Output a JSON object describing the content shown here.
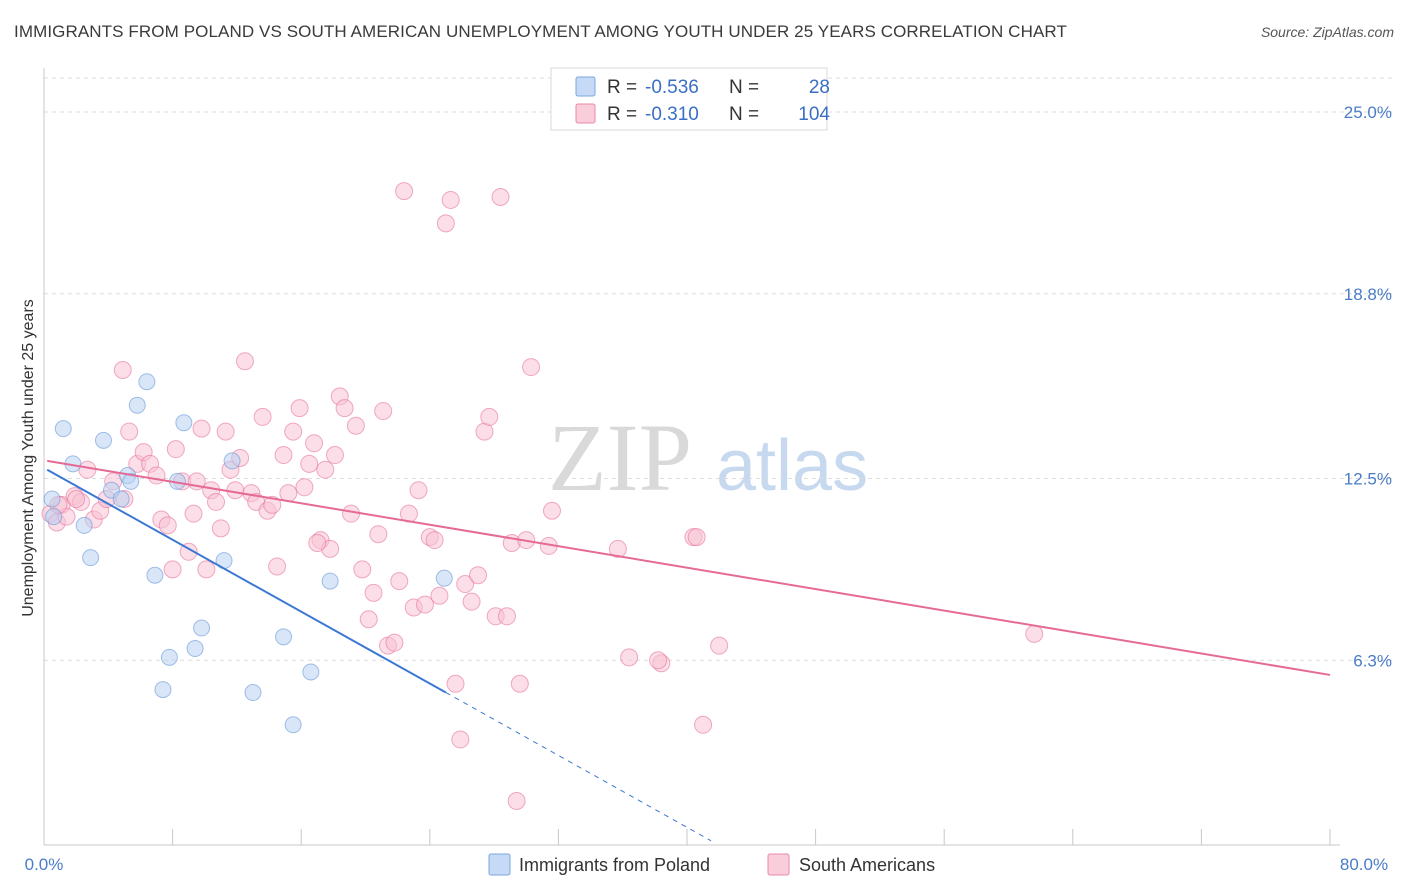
{
  "header": {
    "title": "IMMIGRANTS FROM POLAND VS SOUTH AMERICAN UNEMPLOYMENT AMONG YOUTH UNDER 25 YEARS CORRELATION CHART",
    "source": "Source: ZipAtlas.com"
  },
  "legend": {
    "r_label": "R =",
    "n_label": "N =",
    "rows": [
      {
        "r": "-0.536",
        "n": "28",
        "color": "#a8c8f0"
      },
      {
        "r": "-0.310",
        "n": "104",
        "color": "#f5b8cb"
      }
    ]
  },
  "watermark": {
    "zip": "ZIP",
    "atlas": "atlas"
  },
  "chart_data": {
    "type": "scatter",
    "title": "IMMIGRANTS FROM POLAND VS SOUTH AMERICAN UNEMPLOYMENT AMONG YOUTH UNDER 25 YEARS CORRELATION CHART",
    "xlabel": "",
    "ylabel": "Unemployment Among Youth under 25 years",
    "xlim": [
      0,
      80
    ],
    "ylim": [
      0,
      26.5
    ],
    "x_tick_labels": [
      "0.0%",
      "80.0%"
    ],
    "y_ticks": [
      6.3,
      12.5,
      18.8,
      25.0
    ],
    "y_tick_labels": [
      "6.3%",
      "12.5%",
      "18.8%",
      "25.0%"
    ],
    "grid": "horizontal dashed",
    "legend_position": "top-center",
    "series": [
      {
        "name": "Immigrants from Poland",
        "color": "#5b8fd6",
        "fill": "#b8d1f2",
        "regression": {
          "x0": 0.2,
          "y0": 12.8,
          "x1": 25.0,
          "y1": 5.2,
          "dashed_to_x": 41.5
        },
        "points": [
          [
            0.5,
            11.8
          ],
          [
            0.6,
            11.2
          ],
          [
            1.2,
            14.2
          ],
          [
            1.8,
            13.0
          ],
          [
            2.5,
            10.9
          ],
          [
            2.9,
            9.8
          ],
          [
            3.7,
            13.8
          ],
          [
            4.2,
            12.1
          ],
          [
            4.8,
            11.8
          ],
          [
            5.2,
            12.6
          ],
          [
            5.4,
            12.4
          ],
          [
            5.8,
            15.0
          ],
          [
            6.4,
            15.8
          ],
          [
            6.9,
            9.2
          ],
          [
            7.4,
            5.3
          ],
          [
            7.8,
            6.4
          ],
          [
            8.3,
            12.4
          ],
          [
            8.7,
            14.4
          ],
          [
            9.4,
            6.7
          ],
          [
            9.8,
            7.4
          ],
          [
            11.2,
            9.7
          ],
          [
            11.7,
            13.1
          ],
          [
            13.0,
            5.2
          ],
          [
            14.9,
            7.1
          ],
          [
            15.5,
            4.1
          ],
          [
            16.6,
            5.9
          ],
          [
            17.8,
            9.0
          ],
          [
            24.9,
            9.1
          ]
        ]
      },
      {
        "name": "South Americans",
        "color": "#e56a95",
        "fill": "#f7c3d3",
        "regression": {
          "x0": 0.2,
          "y0": 13.1,
          "x1": 80.0,
          "y1": 5.8
        },
        "points": [
          [
            0.4,
            11.3
          ],
          [
            0.8,
            11.0
          ],
          [
            1.1,
            11.6
          ],
          [
            1.4,
            11.2
          ],
          [
            1.9,
            11.9
          ],
          [
            2.3,
            11.7
          ],
          [
            2.7,
            12.8
          ],
          [
            3.1,
            11.1
          ],
          [
            3.5,
            11.4
          ],
          [
            3.9,
            11.8
          ],
          [
            4.3,
            12.4
          ],
          [
            4.9,
            16.2
          ],
          [
            5.3,
            14.1
          ],
          [
            5.8,
            13.0
          ],
          [
            6.2,
            13.4
          ],
          [
            6.6,
            13.0
          ],
          [
            7.0,
            12.6
          ],
          [
            7.3,
            11.1
          ],
          [
            7.7,
            10.9
          ],
          [
            8.0,
            9.4
          ],
          [
            8.2,
            13.5
          ],
          [
            8.6,
            12.4
          ],
          [
            9.0,
            10.0
          ],
          [
            9.3,
            11.3
          ],
          [
            9.8,
            14.2
          ],
          [
            10.1,
            9.4
          ],
          [
            10.4,
            12.1
          ],
          [
            10.7,
            11.7
          ],
          [
            11.0,
            10.8
          ],
          [
            11.3,
            14.1
          ],
          [
            11.6,
            12.8
          ],
          [
            11.9,
            12.1
          ],
          [
            12.2,
            13.2
          ],
          [
            12.5,
            16.5
          ],
          [
            12.9,
            12.0
          ],
          [
            13.2,
            11.7
          ],
          [
            13.6,
            14.6
          ],
          [
            13.9,
            11.4
          ],
          [
            14.2,
            11.6
          ],
          [
            14.5,
            9.5
          ],
          [
            14.9,
            13.3
          ],
          [
            15.2,
            12.0
          ],
          [
            15.5,
            14.1
          ],
          [
            15.9,
            14.9
          ],
          [
            16.2,
            12.2
          ],
          [
            16.5,
            13.0
          ],
          [
            16.8,
            13.7
          ],
          [
            17.2,
            10.4
          ],
          [
            17.5,
            12.8
          ],
          [
            17.8,
            10.1
          ],
          [
            18.1,
            13.3
          ],
          [
            18.4,
            15.3
          ],
          [
            18.7,
            14.9
          ],
          [
            19.1,
            11.3
          ],
          [
            19.4,
            14.3
          ],
          [
            19.8,
            9.4
          ],
          [
            20.2,
            7.7
          ],
          [
            20.5,
            8.6
          ],
          [
            20.8,
            10.6
          ],
          [
            21.1,
            14.8
          ],
          [
            21.4,
            6.8
          ],
          [
            21.8,
            6.9
          ],
          [
            22.1,
            9.0
          ],
          [
            22.4,
            22.3
          ],
          [
            22.7,
            11.3
          ],
          [
            23.0,
            8.1
          ],
          [
            23.3,
            12.1
          ],
          [
            23.7,
            8.2
          ],
          [
            24.0,
            10.5
          ],
          [
            24.3,
            10.4
          ],
          [
            24.6,
            8.5
          ],
          [
            25.0,
            21.2
          ],
          [
            25.3,
            22.0
          ],
          [
            25.6,
            5.5
          ],
          [
            25.9,
            3.6
          ],
          [
            26.2,
            8.9
          ],
          [
            26.6,
            8.3
          ],
          [
            27.0,
            9.2
          ],
          [
            27.4,
            14.1
          ],
          [
            27.7,
            14.6
          ],
          [
            28.1,
            7.8
          ],
          [
            28.4,
            22.1
          ],
          [
            28.8,
            7.8
          ],
          [
            29.1,
            10.3
          ],
          [
            29.4,
            1.5
          ],
          [
            29.6,
            5.5
          ],
          [
            30.0,
            10.4
          ],
          [
            30.3,
            16.3
          ],
          [
            31.4,
            10.2
          ],
          [
            31.6,
            11.4
          ],
          [
            35.7,
            10.1
          ],
          [
            36.4,
            6.4
          ],
          [
            38.4,
            6.2
          ],
          [
            40.4,
            10.5
          ],
          [
            40.6,
            10.5
          ],
          [
            41.0,
            4.1
          ],
          [
            42.0,
            6.8
          ],
          [
            61.6,
            7.2
          ],
          [
            38.2,
            6.3
          ],
          [
            0.9,
            11.6
          ],
          [
            2.0,
            11.8
          ],
          [
            5.0,
            11.8
          ],
          [
            9.5,
            12.4
          ],
          [
            17.0,
            10.3
          ]
        ]
      }
    ]
  }
}
